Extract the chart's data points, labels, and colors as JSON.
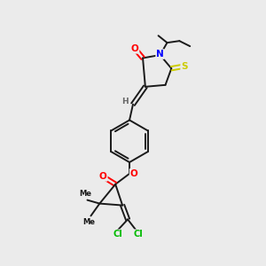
{
  "bg_color": "#ebebeb",
  "bond_color": "#1a1a1a",
  "atom_colors": {
    "O": "#ff0000",
    "N": "#0000ff",
    "S": "#cccc00",
    "Cl": "#00bb00",
    "H": "#666666",
    "C": "#1a1a1a"
  }
}
